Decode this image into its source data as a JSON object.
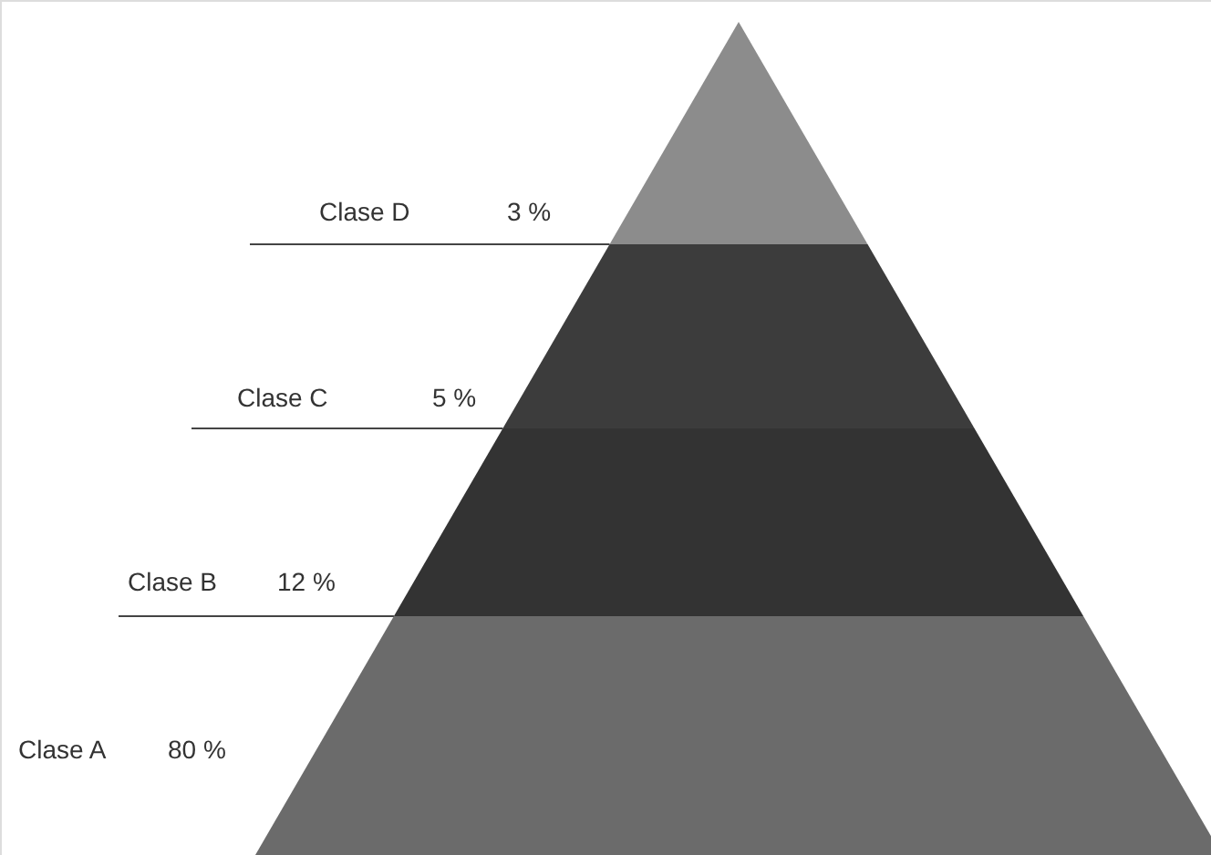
{
  "chart_data": {
    "type": "other",
    "categories": [
      "Clase D",
      "Clase C",
      "Clase B",
      "Clase A"
    ],
    "values": [
      3,
      5,
      12,
      80
    ],
    "value_labels": [
      "3 %",
      "5 %",
      "12 %",
      "80 %"
    ],
    "colors": [
      "#8c8c8c",
      "#3c3c3c",
      "#333333",
      "#6b6b6b"
    ]
  }
}
